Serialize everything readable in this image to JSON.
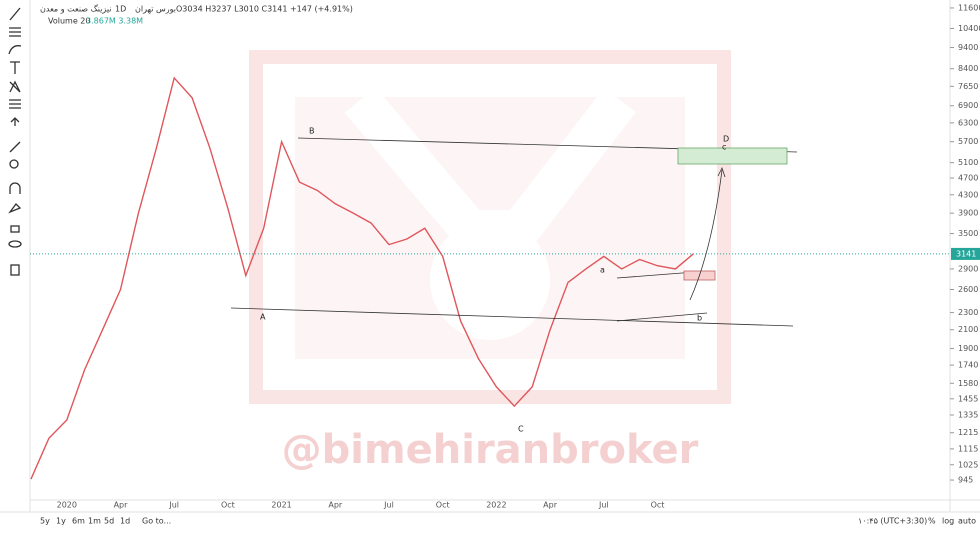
{
  "header": {
    "exchange": "بورس تهران",
    "interval": "1D",
    "symbol": "نیزینگ صنعت و معدن",
    "ohlc": "O3034 H3237 L3010 C3141 +147 (+4.91%)",
    "volume_label": "Volume 20",
    "volume_values": "3.867M 3.38M"
  },
  "watermark": "@bimehiranbroker",
  "wave_labels": [
    "A",
    "B",
    "C",
    "D",
    "a",
    "b",
    "c"
  ],
  "bottom_bar": {
    "ranges": [
      "5y",
      "1y",
      "6m",
      "1m",
      "5d",
      "1d"
    ],
    "goto": "Go to...",
    "clock": "۱۰:۴۵ (UTC+3:30)",
    "options": [
      "%",
      "log",
      "auto"
    ]
  },
  "chart_data": {
    "type": "line",
    "categories": [
      null,
      null,
      "2020",
      null,
      null,
      "Apr",
      null,
      null,
      "Jul",
      null,
      null,
      "Oct",
      null,
      null,
      "2021",
      null,
      null,
      "Apr",
      null,
      null,
      "Jul",
      null,
      null,
      "Oct",
      null,
      null,
      "2022",
      null,
      null,
      "Apr",
      null,
      null,
      "Jul",
      null,
      null,
      "Oct",
      null,
      null
    ],
    "values": [
      950,
      1180,
      1300,
      1700,
      2100,
      2600,
      3900,
      5500,
      8000,
      7200,
      5500,
      4000,
      2800,
      3600,
      5700,
      4600,
      4400,
      4100,
      3900,
      3700,
      3300,
      3400,
      3600,
      3100,
      2200,
      1800,
      1550,
      1400,
      1550,
      2100,
      2700,
      2900,
      3100,
      2900,
      3050,
      2950,
      2900,
      3141
    ],
    "color": "#e0565b",
    "log_scale": true,
    "ylim": [
      850,
      12100
    ],
    "yticks": [
      945,
      1025,
      1115,
      1215,
      1335,
      1455,
      1580,
      1740,
      1900,
      2100,
      2300,
      2600,
      2900,
      3500,
      3900,
      4300,
      4700,
      5100,
      5700,
      6300,
      6900,
      7650,
      8400,
      9400,
      10400,
      11600
    ]
  }
}
